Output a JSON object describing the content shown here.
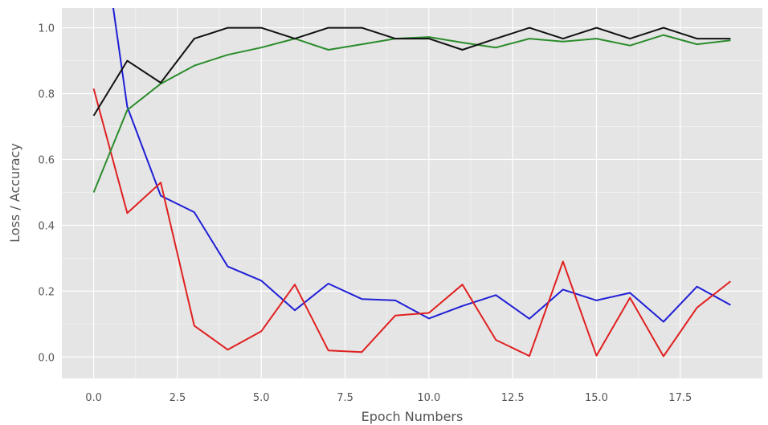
{
  "chart_data": {
    "type": "line",
    "title": "",
    "xlabel": "Epoch Numbers",
    "ylabel": "Loss / Accuracy",
    "xlim": [
      -0.95,
      19.95
    ],
    "ylim": [
      -0.065,
      1.06
    ],
    "xticks": [
      "0.0",
      "2.5",
      "5.0",
      "7.5",
      "10.0",
      "12.5",
      "15.0",
      "17.5"
    ],
    "yticks": [
      "0.0",
      "0.2",
      "0.4",
      "0.6",
      "0.8",
      "1.0"
    ],
    "grid": true,
    "background": "#e5e5e5",
    "x": [
      0,
      1,
      2,
      3,
      4,
      5,
      6,
      7,
      8,
      9,
      10,
      11,
      12,
      13,
      14,
      15,
      16,
      17,
      18,
      19
    ],
    "series": [
      {
        "color": "#1f1fd6",
        "values": [
          1.48,
          0.76,
          0.49,
          0.44,
          0.275,
          0.232,
          0.142,
          0.223,
          0.176,
          0.172,
          0.117,
          0.155,
          0.188,
          0.116,
          0.205,
          0.172,
          0.195,
          0.107,
          0.214,
          0.158
        ]
      },
      {
        "color": "#e02020",
        "values": [
          0.815,
          0.437,
          0.53,
          0.095,
          0.022,
          0.078,
          0.22,
          0.02,
          0.015,
          0.126,
          0.134,
          0.22,
          0.052,
          0.003,
          0.29,
          0.004,
          0.18,
          0.002,
          0.15,
          0.23
        ]
      },
      {
        "color": "#2a8c2a",
        "values": [
          0.5,
          0.75,
          0.83,
          0.885,
          0.918,
          0.94,
          0.967,
          0.933,
          0.95,
          0.967,
          0.972,
          0.955,
          0.94,
          0.967,
          0.958,
          0.967,
          0.946,
          0.978,
          0.95,
          0.962
        ]
      },
      {
        "color": "#111111",
        "values": [
          0.733,
          0.9,
          0.833,
          0.967,
          1.0,
          1.0,
          0.967,
          1.0,
          1.0,
          0.967,
          0.967,
          0.933,
          0.967,
          1.0,
          0.967,
          1.0,
          0.967,
          1.0,
          0.967,
          0.967
        ]
      }
    ]
  }
}
